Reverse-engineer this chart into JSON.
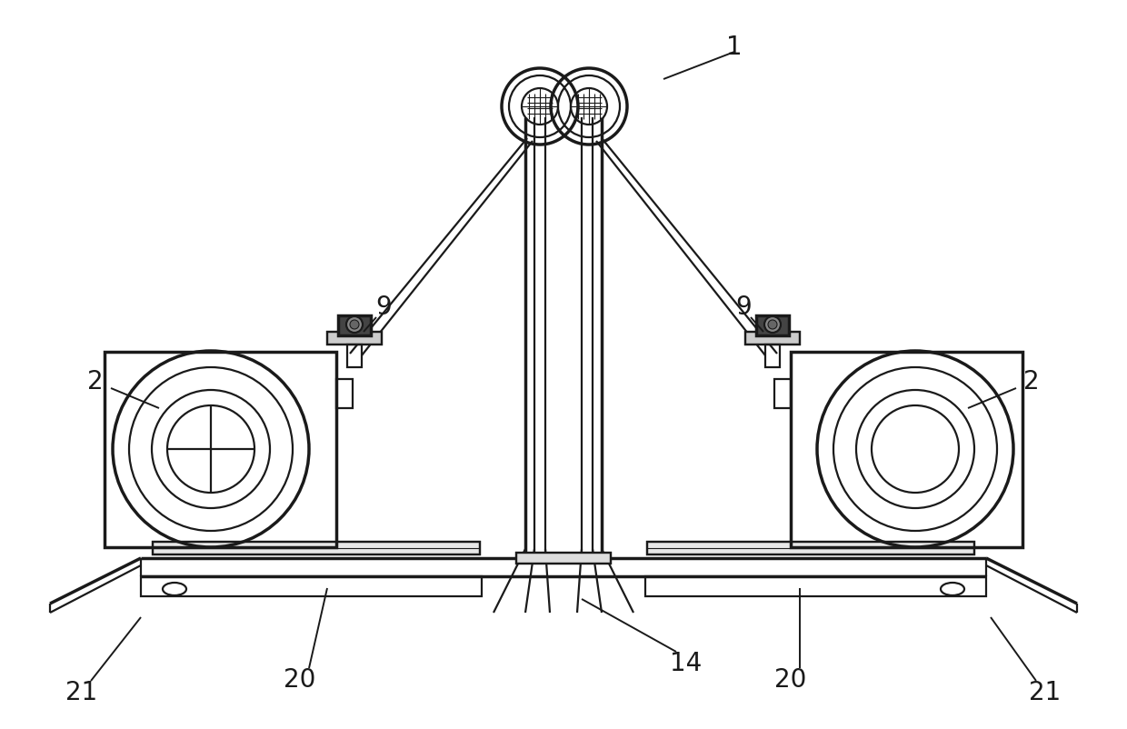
{
  "bg_color": "#ffffff",
  "line_color": "#1a1a1a",
  "lw_main": 1.6,
  "lw_thin": 0.8,
  "lw_thick": 2.5,
  "fig_width": 12.4,
  "fig_height": 8.03,
  "font_size": 20
}
